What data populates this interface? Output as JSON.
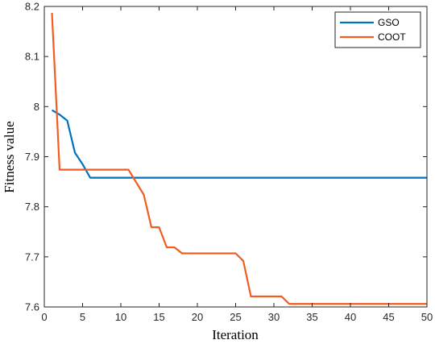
{
  "chart_data": {
    "type": "line",
    "title": "",
    "xlabel": "Iteration",
    "ylabel": "Fitness value",
    "xlim": [
      0,
      50
    ],
    "ylim": [
      7.6,
      8.2
    ],
    "xticks": [
      "0",
      "5",
      "10",
      "15",
      "20",
      "25",
      "30",
      "35",
      "40",
      "45",
      "50"
    ],
    "yticks": [
      "7.6",
      "7.7",
      "7.8",
      "7.9",
      "8",
      "8.1",
      "8.2"
    ],
    "grid": false,
    "legend": "top-right",
    "series": [
      {
        "name": "GSO",
        "color": "#0072BD",
        "x": [
          1,
          2,
          3,
          4,
          5,
          6,
          50
        ],
        "y": [
          7.993,
          7.984,
          7.972,
          7.908,
          7.885,
          7.858,
          7.858
        ]
      },
      {
        "name": "COOT",
        "color": "#F25C1E",
        "x": [
          1,
          2,
          3,
          10,
          11,
          12,
          13,
          14,
          15,
          16,
          17,
          18,
          19,
          25,
          26,
          27,
          28,
          31,
          32,
          50
        ],
        "y": [
          8.187,
          7.874,
          7.874,
          7.874,
          7.874,
          7.849,
          7.824,
          7.759,
          7.759,
          7.719,
          7.719,
          7.707,
          7.707,
          7.707,
          7.692,
          7.621,
          7.621,
          7.621,
          7.606,
          7.606
        ]
      }
    ]
  }
}
